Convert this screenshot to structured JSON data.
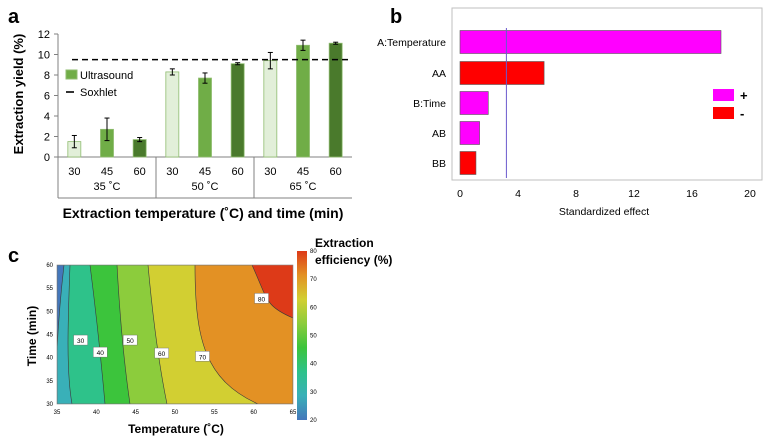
{
  "panels": [
    {
      "label": "a",
      "chart_data": {
        "type": "bar",
        "xlabel": "Extraction temperature (˚C) and time (min)",
        "ylabel": "Extraction yield (%)",
        "ylim": [
          0,
          12
        ],
        "yticks": [
          0,
          2,
          4,
          6,
          8,
          10,
          12
        ],
        "groups": [
          {
            "label": "35 ˚C",
            "times": [
              "30",
              "45",
              "60"
            ],
            "values": [
              1.5,
              2.7,
              1.7
            ],
            "errors": [
              0.6,
              1.1,
              0.2
            ]
          },
          {
            "label": "50 ˚C",
            "times": [
              "30",
              "45",
              "60"
            ],
            "values": [
              8.3,
              7.7,
              9.1
            ],
            "errors": [
              0.3,
              0.5,
              0.1
            ]
          },
          {
            "label": "65 ˚C",
            "times": [
              "30",
              "45",
              "60"
            ],
            "values": [
              9.4,
              10.9,
              11.1
            ],
            "errors": [
              0.8,
              0.5,
              0.1
            ]
          }
        ],
        "bar_colors": [
          "#e2efd9",
          "#70ad47",
          "#4a7a2c"
        ],
        "bar_edge": "#8fbc6f",
        "reference_line": {
          "value": 9.5,
          "label": "Soxhlet",
          "style": "dashed"
        },
        "legend": [
          {
            "label": "Ultrasound",
            "marker": "box",
            "color": "#70ad47"
          },
          {
            "label": "Soxhlet",
            "marker": "dash",
            "color": "#000000"
          }
        ],
        "legend_position": "center-left"
      }
    },
    {
      "label": "b",
      "chart_data": {
        "type": "bar",
        "orientation": "horizontal",
        "categories": [
          "A:Temperature",
          "AA",
          "B:Time",
          "AB",
          "BB"
        ],
        "values": [
          18.0,
          5.8,
          1.95,
          1.35,
          1.1
        ],
        "signs": [
          "+",
          "-",
          "+",
          "+",
          "-"
        ],
        "xlabel": "Standardized effect",
        "xlim": [
          0,
          20
        ],
        "xticks": [
          0,
          4,
          8,
          12,
          16,
          20
        ],
        "reference_line": {
          "value": 3.2,
          "color": "#6a5acd"
        },
        "legend": [
          {
            "label": "+",
            "color": "#ff00ff"
          },
          {
            "label": "-",
            "color": "#ff0000"
          }
        ],
        "legend_position": "right",
        "colors": {
          "plus": "#ff00ff",
          "minus": "#ff0000"
        }
      }
    },
    {
      "label": "c",
      "chart_data": {
        "type": "heatmap",
        "subtype": "contour",
        "xlabel": "Temperature (˚C)",
        "ylabel": "Time (min)",
        "xlim": [
          35,
          65
        ],
        "ylim": [
          30,
          60
        ],
        "xticks": [
          35,
          40,
          45,
          50,
          55,
          60,
          65
        ],
        "yticks": [
          30,
          35,
          40,
          45,
          50,
          55,
          60
        ],
        "contour_levels": [
          20,
          30,
          40,
          50,
          60,
          70,
          80
        ],
        "contour_labels": [
          {
            "label": "30",
            "T": 38.0,
            "t": 43.8
          },
          {
            "label": "40",
            "T": 40.5,
            "t": 41.2
          },
          {
            "label": "50",
            "T": 44.3,
            "t": 43.8
          },
          {
            "label": "60",
            "T": 48.3,
            "t": 41.0
          },
          {
            "label": "70",
            "T": 53.5,
            "t": 40.3
          },
          {
            "label": "80",
            "T": 61.0,
            "t": 52.8
          }
        ],
        "colorbar": {
          "title": [
            "Extraction",
            "efficiency (%)"
          ],
          "range": [
            20,
            80
          ],
          "ticks": [
            20,
            30,
            40,
            50,
            60,
            70,
            80
          ]
        },
        "band_colors": [
          "#4477bb",
          "#39b0b8",
          "#2ec28a",
          "#3cc43c",
          "#8ccc3c",
          "#d2cf32",
          "#e39124",
          "#dd3a18"
        ]
      }
    }
  ]
}
